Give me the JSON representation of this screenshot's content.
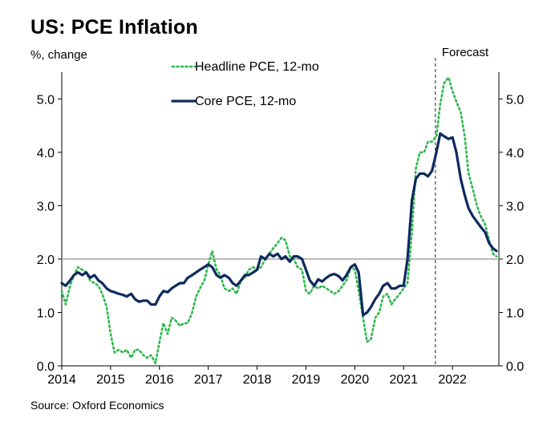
{
  "title": "US: PCE Inflation",
  "unit_label": "%, change",
  "source": "Source: Oxford Economics",
  "colors": {
    "headline": "#2db84d",
    "core": "#0d2a5e",
    "reference": "#b8b8b8",
    "forecast": "#555555"
  },
  "chart_data": {
    "type": "line",
    "title": "US: PCE Inflation",
    "ylabel": "%, change",
    "xlabel": "",
    "xlim": [
      2014.0,
      2022.95
    ],
    "ylim": [
      0.0,
      5.5
    ],
    "y_ticks": [
      "0.0",
      "1.0",
      "2.0",
      "3.0",
      "4.0",
      "5.0"
    ],
    "x_ticks": [
      "2014",
      "2015",
      "2016",
      "2017",
      "2018",
      "2019",
      "2020",
      "2021",
      "2022"
    ],
    "grid": false,
    "legend_position": "top-left",
    "secondary_y_axis": true,
    "reference_line": {
      "y": 2.0
    },
    "annotations": [
      {
        "label": "Forecast",
        "x": 2021.65
      }
    ],
    "series": [
      {
        "name": "Headline PCE, 12-mo",
        "style": "dotted",
        "points": [
          [
            2014.0,
            1.4
          ],
          [
            2014.08,
            1.15
          ],
          [
            2014.17,
            1.5
          ],
          [
            2014.25,
            1.7
          ],
          [
            2014.33,
            1.85
          ],
          [
            2014.42,
            1.8
          ],
          [
            2014.5,
            1.75
          ],
          [
            2014.58,
            1.6
          ],
          [
            2014.67,
            1.55
          ],
          [
            2014.75,
            1.5
          ],
          [
            2014.83,
            1.35
          ],
          [
            2014.92,
            1.1
          ],
          [
            2015.0,
            0.6
          ],
          [
            2015.08,
            0.25
          ],
          [
            2015.17,
            0.3
          ],
          [
            2015.25,
            0.25
          ],
          [
            2015.33,
            0.3
          ],
          [
            2015.42,
            0.15
          ],
          [
            2015.5,
            0.3
          ],
          [
            2015.58,
            0.3
          ],
          [
            2015.67,
            0.2
          ],
          [
            2015.75,
            0.15
          ],
          [
            2015.83,
            0.2
          ],
          [
            2015.92,
            0.05
          ],
          [
            2016.0,
            0.45
          ],
          [
            2016.08,
            0.8
          ],
          [
            2016.17,
            0.6
          ],
          [
            2016.25,
            0.9
          ],
          [
            2016.33,
            0.85
          ],
          [
            2016.42,
            0.75
          ],
          [
            2016.5,
            0.8
          ],
          [
            2016.58,
            0.8
          ],
          [
            2016.67,
            1.0
          ],
          [
            2016.75,
            1.3
          ],
          [
            2016.83,
            1.45
          ],
          [
            2016.92,
            1.6
          ],
          [
            2017.0,
            1.9
          ],
          [
            2017.08,
            2.15
          ],
          [
            2017.17,
            1.8
          ],
          [
            2017.25,
            1.7
          ],
          [
            2017.33,
            1.45
          ],
          [
            2017.42,
            1.4
          ],
          [
            2017.5,
            1.45
          ],
          [
            2017.58,
            1.35
          ],
          [
            2017.67,
            1.6
          ],
          [
            2017.75,
            1.65
          ],
          [
            2017.83,
            1.8
          ],
          [
            2017.92,
            1.85
          ],
          [
            2018.0,
            1.8
          ],
          [
            2018.08,
            1.85
          ],
          [
            2018.17,
            2.0
          ],
          [
            2018.25,
            2.1
          ],
          [
            2018.33,
            2.2
          ],
          [
            2018.42,
            2.3
          ],
          [
            2018.5,
            2.4
          ],
          [
            2018.58,
            2.35
          ],
          [
            2018.67,
            2.05
          ],
          [
            2018.75,
            2.0
          ],
          [
            2018.83,
            1.85
          ],
          [
            2018.92,
            1.8
          ],
          [
            2019.0,
            1.4
          ],
          [
            2019.08,
            1.35
          ],
          [
            2019.17,
            1.5
          ],
          [
            2019.25,
            1.45
          ],
          [
            2019.33,
            1.5
          ],
          [
            2019.42,
            1.45
          ],
          [
            2019.5,
            1.4
          ],
          [
            2019.58,
            1.35
          ],
          [
            2019.67,
            1.4
          ],
          [
            2019.75,
            1.5
          ],
          [
            2019.83,
            1.6
          ],
          [
            2019.92,
            1.85
          ],
          [
            2020.0,
            1.8
          ],
          [
            2020.08,
            1.4
          ],
          [
            2020.17,
            0.9
          ],
          [
            2020.25,
            0.45
          ],
          [
            2020.33,
            0.5
          ],
          [
            2020.42,
            0.9
          ],
          [
            2020.5,
            1.0
          ],
          [
            2020.58,
            1.3
          ],
          [
            2020.67,
            1.35
          ],
          [
            2020.75,
            1.15
          ],
          [
            2020.83,
            1.25
          ],
          [
            2020.92,
            1.35
          ],
          [
            2021.0,
            1.45
          ],
          [
            2021.08,
            1.55
          ],
          [
            2021.17,
            2.5
          ],
          [
            2021.25,
            3.7
          ],
          [
            2021.33,
            4.0
          ],
          [
            2021.42,
            4.0
          ],
          [
            2021.5,
            4.2
          ],
          [
            2021.58,
            4.2
          ],
          [
            2021.67,
            4.3
          ],
          [
            2021.75,
            4.9
          ],
          [
            2021.83,
            5.3
          ],
          [
            2021.92,
            5.4
          ],
          [
            2022.0,
            5.15
          ],
          [
            2022.08,
            4.95
          ],
          [
            2022.17,
            4.75
          ],
          [
            2022.25,
            4.3
          ],
          [
            2022.33,
            3.6
          ],
          [
            2022.42,
            3.3
          ],
          [
            2022.5,
            3.0
          ],
          [
            2022.58,
            2.8
          ],
          [
            2022.67,
            2.65
          ],
          [
            2022.75,
            2.35
          ],
          [
            2022.83,
            2.1
          ],
          [
            2022.9,
            2.05
          ]
        ]
      },
      {
        "name": "Core PCE, 12-mo",
        "style": "solid",
        "points": [
          [
            2014.0,
            1.55
          ],
          [
            2014.08,
            1.5
          ],
          [
            2014.17,
            1.6
          ],
          [
            2014.25,
            1.7
          ],
          [
            2014.33,
            1.75
          ],
          [
            2014.42,
            1.7
          ],
          [
            2014.5,
            1.75
          ],
          [
            2014.58,
            1.65
          ],
          [
            2014.67,
            1.7
          ],
          [
            2014.75,
            1.6
          ],
          [
            2014.83,
            1.55
          ],
          [
            2014.92,
            1.45
          ],
          [
            2015.0,
            1.4
          ],
          [
            2015.08,
            1.38
          ],
          [
            2015.17,
            1.35
          ],
          [
            2015.25,
            1.33
          ],
          [
            2015.33,
            1.3
          ],
          [
            2015.42,
            1.35
          ],
          [
            2015.5,
            1.25
          ],
          [
            2015.58,
            1.2
          ],
          [
            2015.67,
            1.22
          ],
          [
            2015.75,
            1.22
          ],
          [
            2015.83,
            1.15
          ],
          [
            2015.92,
            1.15
          ],
          [
            2016.0,
            1.3
          ],
          [
            2016.08,
            1.4
          ],
          [
            2016.17,
            1.38
          ],
          [
            2016.25,
            1.45
          ],
          [
            2016.33,
            1.5
          ],
          [
            2016.42,
            1.55
          ],
          [
            2016.5,
            1.55
          ],
          [
            2016.58,
            1.65
          ],
          [
            2016.67,
            1.7
          ],
          [
            2016.75,
            1.75
          ],
          [
            2016.83,
            1.8
          ],
          [
            2016.92,
            1.85
          ],
          [
            2017.0,
            1.9
          ],
          [
            2017.08,
            1.85
          ],
          [
            2017.17,
            1.7
          ],
          [
            2017.25,
            1.65
          ],
          [
            2017.33,
            1.7
          ],
          [
            2017.42,
            1.65
          ],
          [
            2017.5,
            1.55
          ],
          [
            2017.58,
            1.5
          ],
          [
            2017.67,
            1.6
          ],
          [
            2017.75,
            1.7
          ],
          [
            2017.83,
            1.7
          ],
          [
            2017.92,
            1.75
          ],
          [
            2018.0,
            1.8
          ],
          [
            2018.08,
            2.05
          ],
          [
            2018.17,
            2.0
          ],
          [
            2018.25,
            2.1
          ],
          [
            2018.33,
            2.05
          ],
          [
            2018.42,
            2.1
          ],
          [
            2018.5,
            2.0
          ],
          [
            2018.58,
            2.05
          ],
          [
            2018.67,
            1.95
          ],
          [
            2018.75,
            2.05
          ],
          [
            2018.83,
            2.05
          ],
          [
            2018.92,
            2.0
          ],
          [
            2019.0,
            1.8
          ],
          [
            2019.08,
            1.6
          ],
          [
            2019.17,
            1.5
          ],
          [
            2019.25,
            1.62
          ],
          [
            2019.33,
            1.58
          ],
          [
            2019.42,
            1.65
          ],
          [
            2019.5,
            1.7
          ],
          [
            2019.58,
            1.72
          ],
          [
            2019.67,
            1.68
          ],
          [
            2019.75,
            1.6
          ],
          [
            2019.83,
            1.7
          ],
          [
            2019.92,
            1.85
          ],
          [
            2020.0,
            1.9
          ],
          [
            2020.08,
            1.75
          ],
          [
            2020.17,
            0.95
          ],
          [
            2020.25,
            1.0
          ],
          [
            2020.33,
            1.1
          ],
          [
            2020.42,
            1.25
          ],
          [
            2020.5,
            1.35
          ],
          [
            2020.58,
            1.5
          ],
          [
            2020.67,
            1.55
          ],
          [
            2020.75,
            1.45
          ],
          [
            2020.83,
            1.45
          ],
          [
            2020.92,
            1.5
          ],
          [
            2021.0,
            1.5
          ],
          [
            2021.08,
            2.0
          ],
          [
            2021.17,
            3.1
          ],
          [
            2021.25,
            3.5
          ],
          [
            2021.33,
            3.6
          ],
          [
            2021.42,
            3.6
          ],
          [
            2021.5,
            3.55
          ],
          [
            2021.58,
            3.65
          ],
          [
            2021.67,
            4.0
          ],
          [
            2021.75,
            4.35
          ],
          [
            2021.83,
            4.3
          ],
          [
            2021.92,
            4.25
          ],
          [
            2022.0,
            4.28
          ],
          [
            2022.08,
            4.0
          ],
          [
            2022.17,
            3.5
          ],
          [
            2022.25,
            3.2
          ],
          [
            2022.33,
            2.95
          ],
          [
            2022.42,
            2.8
          ],
          [
            2022.5,
            2.7
          ],
          [
            2022.58,
            2.6
          ],
          [
            2022.67,
            2.5
          ],
          [
            2022.75,
            2.3
          ],
          [
            2022.83,
            2.2
          ],
          [
            2022.9,
            2.15
          ]
        ]
      }
    ]
  }
}
